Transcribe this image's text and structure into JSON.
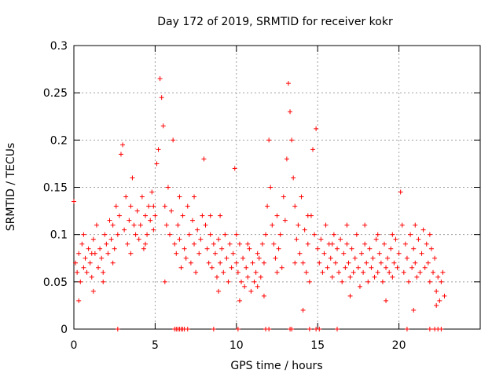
{
  "chart_data": {
    "type": "scatter",
    "title": "Day 172 of 2019, SRMTID for receiver kokr",
    "xlabel": "GPS time / hours",
    "ylabel": "SRMTID / TECUs",
    "xlim": [
      0,
      25
    ],
    "ylim": [
      0,
      0.3
    ],
    "x_ticks": [
      "0",
      "5",
      "10",
      "15",
      "20"
    ],
    "y_ticks": [
      "0",
      "0.05",
      "0.1",
      "0.15",
      "0.2",
      "0.25",
      "0.3"
    ],
    "grid": true,
    "marker": "+",
    "color": "#ff0000",
    "series": [
      {
        "points": [
          [
            0.0,
            0.135
          ],
          [
            0.1,
            0.07
          ],
          [
            0.2,
            0.06
          ],
          [
            0.3,
            0.08
          ],
          [
            0.4,
            0.05
          ],
          [
            0.5,
            0.09
          ],
          [
            0.6,
            0.065
          ],
          [
            0.7,
            0.075
          ],
          [
            0.8,
            0.06
          ],
          [
            0.9,
            0.085
          ],
          [
            1.0,
            0.07
          ],
          [
            1.1,
            0.055
          ],
          [
            1.2,
            0.095
          ],
          [
            1.3,
            0.08
          ],
          [
            1.4,
            0.11
          ],
          [
            1.5,
            0.065
          ],
          [
            1.6,
            0.085
          ],
          [
            1.7,
            0.075
          ],
          [
            1.8,
            0.05
          ],
          [
            1.9,
            0.1
          ],
          [
            2.0,
            0.09
          ],
          [
            2.1,
            0.08
          ],
          [
            2.2,
            0.115
          ],
          [
            2.3,
            0.095
          ],
          [
            2.4,
            0.11
          ],
          [
            2.5,
            0.085
          ],
          [
            2.6,
            0.13
          ],
          [
            2.7,
            0.1
          ],
          [
            2.8,
            0.12
          ],
          [
            2.9,
            0.185
          ],
          [
            3.0,
            0.195
          ],
          [
            3.1,
            0.105
          ],
          [
            3.2,
            0.14
          ],
          [
            3.3,
            0.09
          ],
          [
            3.4,
            0.115
          ],
          [
            3.5,
            0.13
          ],
          [
            3.6,
            0.16
          ],
          [
            3.7,
            0.11
          ],
          [
            3.8,
            0.1
          ],
          [
            3.9,
            0.125
          ],
          [
            4.0,
            0.095
          ],
          [
            4.1,
            0.11
          ],
          [
            4.2,
            0.14
          ],
          [
            4.3,
            0.085
          ],
          [
            4.4,
            0.12
          ],
          [
            4.5,
            0.1
          ],
          [
            4.6,
            0.13
          ],
          [
            4.7,
            0.115
          ],
          [
            4.8,
            0.145
          ],
          [
            4.9,
            0.105
          ],
          [
            5.0,
            0.12
          ],
          [
            5.1,
            0.175
          ],
          [
            5.2,
            0.19
          ],
          [
            5.3,
            0.265
          ],
          [
            5.4,
            0.245
          ],
          [
            5.5,
            0.215
          ],
          [
            5.6,
            0.13
          ],
          [
            5.7,
            0.11
          ],
          [
            5.8,
            0.15
          ],
          [
            5.9,
            0.1
          ],
          [
            6.0,
            0.125
          ],
          [
            6.1,
            0.2
          ],
          [
            6.2,
            0.09
          ],
          [
            6.3,
            0.08
          ],
          [
            6.4,
            0.11
          ],
          [
            6.5,
            0.095
          ],
          [
            6.6,
            0.065
          ],
          [
            6.7,
            0.12
          ],
          [
            6.8,
            0.085
          ],
          [
            6.9,
            0.075
          ],
          [
            7.0,
            0.13
          ],
          [
            7.1,
            0.1
          ],
          [
            7.2,
            0.07
          ],
          [
            7.3,
            0.115
          ],
          [
            7.4,
            0.09
          ],
          [
            7.5,
            0.06
          ],
          [
            7.6,
            0.105
          ],
          [
            7.7,
            0.08
          ],
          [
            7.8,
            0.095
          ],
          [
            7.9,
            0.12
          ],
          [
            8.0,
            0.18
          ],
          [
            8.1,
            0.11
          ],
          [
            8.2,
            0.085
          ],
          [
            8.3,
            0.07
          ],
          [
            8.4,
            0.1
          ],
          [
            8.5,
            0.065
          ],
          [
            8.6,
            0.09
          ],
          [
            8.7,
            0.08
          ],
          [
            8.8,
            0.055
          ],
          [
            8.9,
            0.095
          ],
          [
            9.0,
            0.07
          ],
          [
            9.1,
            0.085
          ],
          [
            9.2,
            0.06
          ],
          [
            9.3,
            0.1
          ],
          [
            9.4,
            0.075
          ],
          [
            9.5,
            0.05
          ],
          [
            9.6,
            0.09
          ],
          [
            9.7,
            0.065
          ],
          [
            9.8,
            0.08
          ],
          [
            9.9,
            0.17
          ],
          [
            10.0,
            0.07
          ],
          [
            10.1,
            0.06
          ],
          [
            10.2,
            0.09
          ],
          [
            10.3,
            0.05
          ],
          [
            10.4,
            0.075
          ],
          [
            10.5,
            0.045
          ],
          [
            10.6,
            0.065
          ],
          [
            10.7,
            0.055
          ],
          [
            10.8,
            0.085
          ],
          [
            10.9,
            0.04
          ],
          [
            11.0,
            0.07
          ],
          [
            11.1,
            0.05
          ],
          [
            11.2,
            0.06
          ],
          [
            11.3,
            0.045
          ],
          [
            11.4,
            0.075
          ],
          [
            11.5,
            0.055
          ],
          [
            11.6,
            0.09
          ],
          [
            11.7,
            0.07
          ],
          [
            11.8,
            0.1
          ],
          [
            11.9,
            0.13
          ],
          [
            12.0,
            0.2
          ],
          [
            12.1,
            0.15
          ],
          [
            12.2,
            0.11
          ],
          [
            12.3,
            0.09
          ],
          [
            12.4,
            0.075
          ],
          [
            12.5,
            0.12
          ],
          [
            12.6,
            0.085
          ],
          [
            12.7,
            0.1
          ],
          [
            12.8,
            0.065
          ],
          [
            12.9,
            0.14
          ],
          [
            13.0,
            0.115
          ],
          [
            13.1,
            0.18
          ],
          [
            13.2,
            0.26
          ],
          [
            13.3,
            0.23
          ],
          [
            13.4,
            0.2
          ],
          [
            13.5,
            0.16
          ],
          [
            13.6,
            0.13
          ],
          [
            13.7,
            0.095
          ],
          [
            13.8,
            0.11
          ],
          [
            13.9,
            0.08
          ],
          [
            14.0,
            0.14
          ],
          [
            14.1,
            0.07
          ],
          [
            14.2,
            0.105
          ],
          [
            14.3,
            0.06
          ],
          [
            14.4,
            0.09
          ],
          [
            14.5,
            0.05
          ],
          [
            14.6,
            0.12
          ],
          [
            14.7,
            0.19
          ],
          [
            14.8,
            0.1
          ],
          [
            14.9,
            0.212
          ],
          [
            15.0,
            0.085
          ],
          [
            15.1,
            0.07
          ],
          [
            15.2,
            0.095
          ],
          [
            15.3,
            0.06
          ],
          [
            15.4,
            0.08
          ],
          [
            15.5,
            0.11
          ],
          [
            15.6,
            0.065
          ],
          [
            15.7,
            0.09
          ],
          [
            15.8,
            0.075
          ],
          [
            15.9,
            0.055
          ],
          [
            16.0,
            0.1
          ],
          [
            16.1,
            0.07
          ],
          [
            16.2,
            0.085
          ],
          [
            16.3,
            0.06
          ],
          [
            16.4,
            0.095
          ],
          [
            16.5,
            0.05
          ],
          [
            16.6,
            0.08
          ],
          [
            16.7,
            0.065
          ],
          [
            16.8,
            0.09
          ],
          [
            16.9,
            0.07
          ],
          [
            17.0,
            0.055
          ],
          [
            17.1,
            0.085
          ],
          [
            17.2,
            0.06
          ],
          [
            17.3,
            0.075
          ],
          [
            17.4,
            0.1
          ],
          [
            17.5,
            0.065
          ],
          [
            17.6,
            0.045
          ],
          [
            17.7,
            0.08
          ],
          [
            17.8,
            0.06
          ],
          [
            17.9,
            0.09
          ],
          [
            18.0,
            0.07
          ],
          [
            18.1,
            0.05
          ],
          [
            18.2,
            0.085
          ],
          [
            18.3,
            0.065
          ],
          [
            18.4,
            0.075
          ],
          [
            18.5,
            0.055
          ],
          [
            18.6,
            0.095
          ],
          [
            18.7,
            0.06
          ],
          [
            18.8,
            0.08
          ],
          [
            18.9,
            0.07
          ],
          [
            19.0,
            0.05
          ],
          [
            19.1,
            0.09
          ],
          [
            19.2,
            0.065
          ],
          [
            19.3,
            0.075
          ],
          [
            19.4,
            0.06
          ],
          [
            19.5,
            0.085
          ],
          [
            19.6,
            0.055
          ],
          [
            19.7,
            0.07
          ],
          [
            19.8,
            0.095
          ],
          [
            19.9,
            0.065
          ],
          [
            20.0,
            0.08
          ],
          [
            20.1,
            0.145
          ],
          [
            20.2,
            0.11
          ],
          [
            20.3,
            0.06
          ],
          [
            20.4,
            0.09
          ],
          [
            20.5,
            0.075
          ],
          [
            20.6,
            0.05
          ],
          [
            20.7,
            0.1
          ],
          [
            20.8,
            0.065
          ],
          [
            20.9,
            0.085
          ],
          [
            21.0,
            0.07
          ],
          [
            21.1,
            0.055
          ],
          [
            21.2,
            0.095
          ],
          [
            21.3,
            0.06
          ],
          [
            21.4,
            0.08
          ],
          [
            21.5,
            0.105
          ],
          [
            21.6,
            0.065
          ],
          [
            21.7,
            0.09
          ],
          [
            21.8,
            0.07
          ],
          [
            21.9,
            0.05
          ],
          [
            22.0,
            0.085
          ],
          [
            22.1,
            0.06
          ],
          [
            22.2,
            0.075
          ],
          [
            22.3,
            0.04
          ],
          [
            22.4,
            0.055
          ],
          [
            22.5,
            0.03
          ],
          [
            22.6,
            0.05
          ],
          [
            22.7,
            0.06
          ],
          [
            22.8,
            0.035
          ],
          [
            0.6,
            0.1
          ],
          [
            1.1,
            0.08
          ],
          [
            1.8,
            0.06
          ],
          [
            2.4,
            0.07
          ],
          [
            3.5,
            0.08
          ],
          [
            4.4,
            0.09
          ],
          [
            4.9,
            0.13
          ],
          [
            6.5,
            0.14
          ],
          [
            7.4,
            0.14
          ],
          [
            8.4,
            0.12
          ],
          [
            9.0,
            0.12
          ],
          [
            10.0,
            0.1
          ],
          [
            10.7,
            0.09
          ],
          [
            11.3,
            0.08
          ],
          [
            12.5,
            0.06
          ],
          [
            13.6,
            0.07
          ],
          [
            14.4,
            0.12
          ],
          [
            15.9,
            0.09
          ],
          [
            16.8,
            0.11
          ],
          [
            17.9,
            0.11
          ],
          [
            18.7,
            0.1
          ],
          [
            19.6,
            0.1
          ],
          [
            21.0,
            0.11
          ],
          [
            21.9,
            0.1
          ],
          [
            0.3,
            0.03
          ],
          [
            1.2,
            0.04
          ],
          [
            5.6,
            0.05
          ],
          [
            8.9,
            0.04
          ],
          [
            10.2,
            0.03
          ],
          [
            11.7,
            0.035
          ],
          [
            14.1,
            0.02
          ],
          [
            17.0,
            0.035
          ],
          [
            19.2,
            0.03
          ],
          [
            20.9,
            0.02
          ],
          [
            22.3,
            0.025
          ]
        ]
      },
      {
        "points": [
          [
            2.7,
            0.0
          ],
          [
            6.2,
            0.0
          ],
          [
            6.3,
            0.0
          ],
          [
            6.4,
            0.0
          ],
          [
            6.5,
            0.0
          ],
          [
            6.6,
            0.0
          ],
          [
            6.7,
            0.0
          ],
          [
            6.8,
            0.0
          ],
          [
            7.0,
            0.0
          ],
          [
            8.6,
            0.0
          ],
          [
            10.1,
            0.0
          ],
          [
            11.8,
            0.0
          ],
          [
            12.0,
            0.0
          ],
          [
            13.3,
            0.0
          ],
          [
            13.4,
            0.0
          ],
          [
            14.5,
            0.0
          ],
          [
            14.9,
            0.0
          ],
          [
            15.1,
            0.0
          ],
          [
            16.2,
            0.0
          ],
          [
            20.5,
            0.0
          ],
          [
            21.9,
            0.0
          ],
          [
            22.2,
            0.0
          ],
          [
            22.4,
            0.0
          ],
          [
            22.6,
            0.0
          ]
        ]
      }
    ]
  }
}
